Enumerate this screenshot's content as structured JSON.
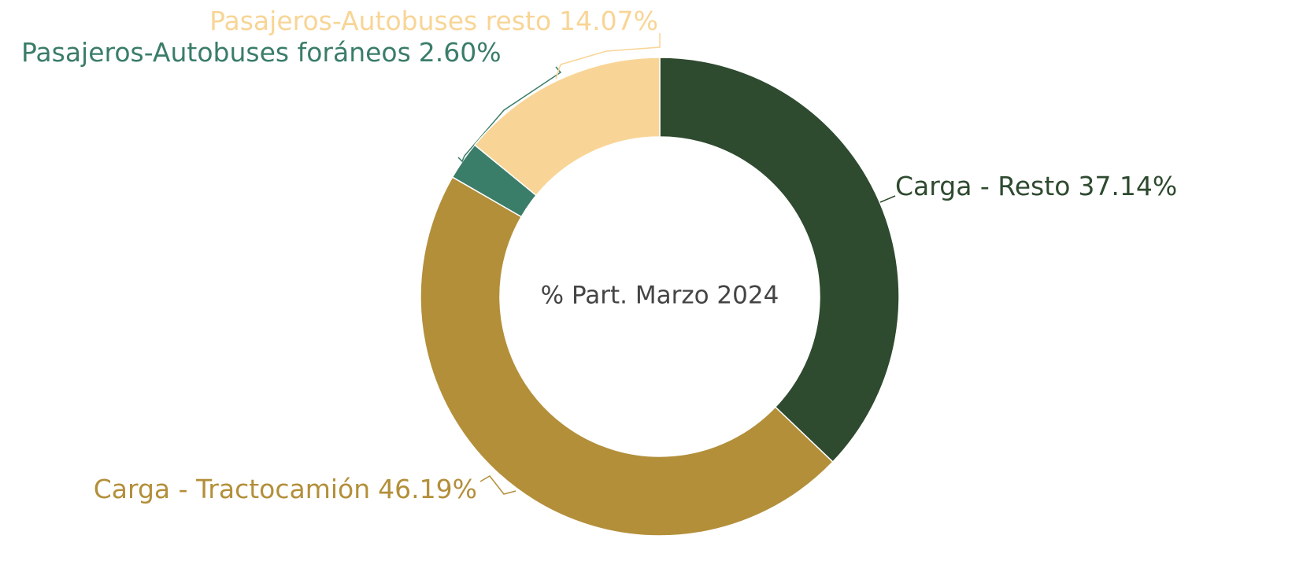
{
  "chart_data": {
    "type": "donut",
    "center_text": "% Part. Marzo 2024",
    "categories": [
      "Carga - Resto",
      "Carga - Tractocamión",
      "Pasajeros-Autobuses foráneos",
      "Pasajeros-Autobuses resto"
    ],
    "values": [
      37.14,
      46.19,
      2.6,
      14.07
    ],
    "value_labels": [
      "37.14%",
      "46.19%",
      "2.60%",
      "14.07%"
    ],
    "colors": [
      "#2e4a2f",
      "#b38f3a",
      "#3a7d69",
      "#f8d596"
    ]
  }
}
